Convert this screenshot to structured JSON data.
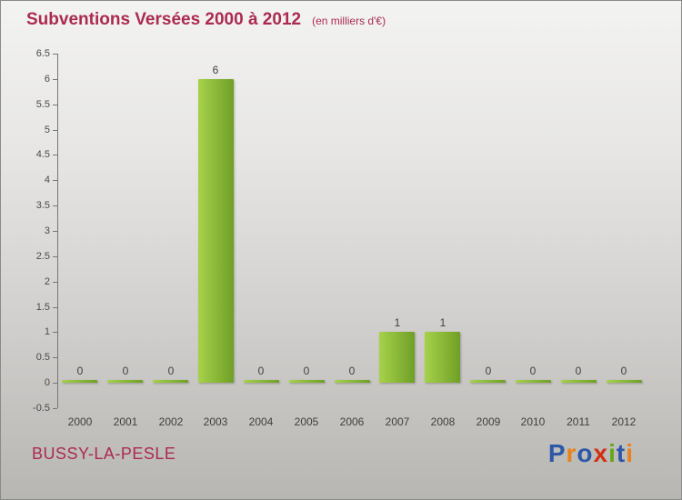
{
  "header": {
    "title": "Subventions Versées 2000 à 2012",
    "subtitle": "(en milliers d'€)"
  },
  "chart_data": {
    "type": "bar",
    "title": "Subventions Versées 2000 à 2012",
    "unit_note": "(en milliers d'€)",
    "categories": [
      "2000",
      "2001",
      "2002",
      "2003",
      "2004",
      "2005",
      "2006",
      "2007",
      "2008",
      "2009",
      "2010",
      "2011",
      "2012"
    ],
    "values": [
      0,
      0,
      0,
      6,
      0,
      0,
      0,
      1,
      1,
      0,
      0,
      0,
      0
    ],
    "ylim": [
      -0.5,
      6.5
    ],
    "ytick_step": 0.5,
    "grid": false,
    "legend": false,
    "xlabel": "",
    "ylabel": "",
    "bar_color_top": "#a6d24a",
    "bar_color_bottom": "#6f9f27",
    "value_label_color": "#3f3f3f",
    "axis_color": "#777777"
  },
  "footer": {
    "commune": "BUSSY-LA-PESLE"
  },
  "logo": {
    "name": "Proxiti",
    "letters": [
      {
        "ch": "P",
        "color": "#2e58a6"
      },
      {
        "ch": "r",
        "color": "#e8821e"
      },
      {
        "ch": "o",
        "color": "#2e58a6"
      },
      {
        "ch": "x",
        "color": "#d32f11"
      },
      {
        "ch": "i",
        "color": "#63a81c"
      },
      {
        "ch": "t",
        "color": "#2e58a6"
      },
      {
        "ch": "i",
        "color": "#e8821e"
      }
    ]
  }
}
